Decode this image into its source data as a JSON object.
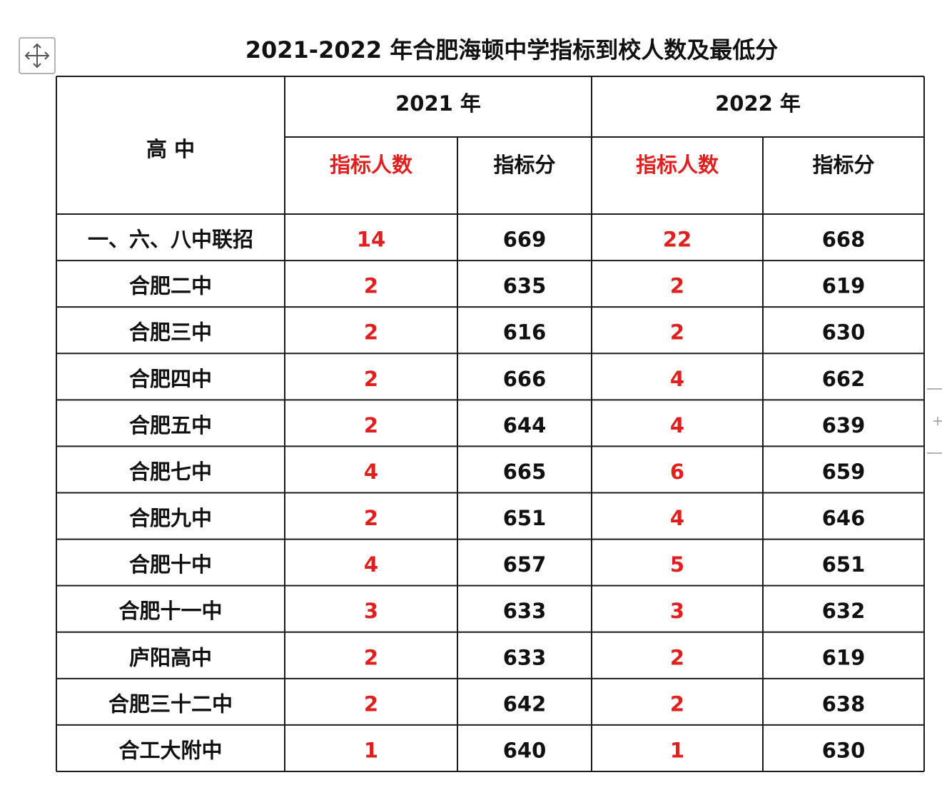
{
  "title": "2021-2022 年合肥海顿中学指标到校人数及最低分",
  "table": {
    "corner": "高 中",
    "years": [
      "2021 年",
      "2022 年"
    ],
    "subheaders": [
      "指标人数",
      "指标分",
      "指标人数",
      "指标分"
    ],
    "rows": [
      [
        "一、六、八中联招",
        14,
        669,
        22,
        668
      ],
      [
        "合肥二中",
        2,
        635,
        2,
        619
      ],
      [
        "合肥三中",
        2,
        616,
        2,
        630
      ],
      [
        "合肥四中",
        2,
        666,
        4,
        662
      ],
      [
        "合肥五中",
        2,
        644,
        4,
        639
      ],
      [
        "合肥七中",
        4,
        665,
        6,
        659
      ],
      [
        "合肥九中",
        2,
        651,
        4,
        646
      ],
      [
        "合肥十中",
        4,
        657,
        5,
        651
      ],
      [
        "合肥十一中",
        3,
        633,
        3,
        632
      ],
      [
        "庐阳高中",
        2,
        633,
        2,
        619
      ],
      [
        "合肥三十二中",
        2,
        642,
        2,
        638
      ],
      [
        "合工大附中",
        1,
        640,
        1,
        630
      ]
    ]
  }
}
